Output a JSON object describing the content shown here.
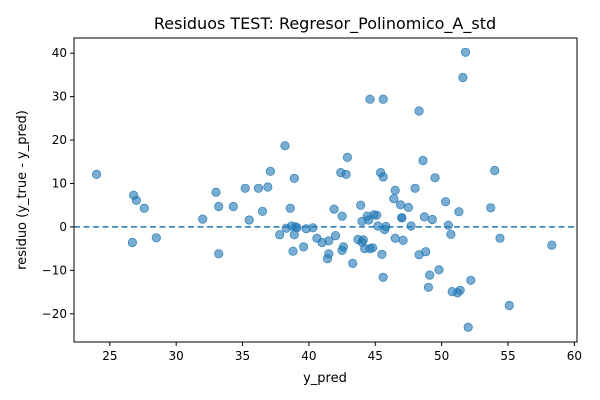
{
  "chart_data": {
    "type": "scatter",
    "title": "Residuos TEST: Regresor_Polinomico_A_std",
    "xlabel": "y_pred",
    "ylabel": "residuo (y_true - y_pred)",
    "xlim": [
      22.3,
      60.2
    ],
    "ylim": [
      -26.5,
      43.5
    ],
    "xticks": [
      25,
      30,
      35,
      40,
      45,
      50,
      55,
      60
    ],
    "yticks": [
      -20,
      -10,
      0,
      10,
      20,
      30,
      40
    ],
    "reference_line": {
      "y": 0,
      "style": "dashed",
      "color": "#1f77b4"
    },
    "grid": false,
    "marker_color": "#1f77b4",
    "points": [
      {
        "x": 24.0,
        "y": 12.1
      },
      {
        "x": 26.7,
        "y": -3.6
      },
      {
        "x": 26.8,
        "y": 7.3
      },
      {
        "x": 27.0,
        "y": 6.1
      },
      {
        "x": 27.6,
        "y": 4.3
      },
      {
        "x": 28.5,
        "y": -2.5
      },
      {
        "x": 32.0,
        "y": 1.8
      },
      {
        "x": 33.0,
        "y": 8.0
      },
      {
        "x": 33.2,
        "y": 4.7
      },
      {
        "x": 33.2,
        "y": -6.2
      },
      {
        "x": 34.3,
        "y": 4.7
      },
      {
        "x": 35.2,
        "y": 8.9
      },
      {
        "x": 35.5,
        "y": 1.6
      },
      {
        "x": 36.2,
        "y": 8.9
      },
      {
        "x": 36.5,
        "y": 3.6
      },
      {
        "x": 36.9,
        "y": 9.2
      },
      {
        "x": 37.1,
        "y": 12.8
      },
      {
        "x": 37.8,
        "y": -1.8
      },
      {
        "x": 38.2,
        "y": 18.7
      },
      {
        "x": 38.3,
        "y": -0.3
      },
      {
        "x": 38.6,
        "y": 4.3
      },
      {
        "x": 38.7,
        "y": 0.2
      },
      {
        "x": 38.8,
        "y": -5.6
      },
      {
        "x": 38.9,
        "y": -1.8
      },
      {
        "x": 38.9,
        "y": 11.2
      },
      {
        "x": 39.0,
        "y": 0.0
      },
      {
        "x": 39.1,
        "y": -0.2
      },
      {
        "x": 39.6,
        "y": -4.6
      },
      {
        "x": 39.8,
        "y": -0.4
      },
      {
        "x": 40.3,
        "y": -0.2
      },
      {
        "x": 40.6,
        "y": -2.6
      },
      {
        "x": 41.0,
        "y": -3.6
      },
      {
        "x": 41.4,
        "y": -7.3
      },
      {
        "x": 41.5,
        "y": -6.2
      },
      {
        "x": 41.5,
        "y": -3.2
      },
      {
        "x": 41.9,
        "y": 4.1
      },
      {
        "x": 42.0,
        "y": -2.0
      },
      {
        "x": 42.4,
        "y": 12.5
      },
      {
        "x": 42.5,
        "y": -5.4
      },
      {
        "x": 42.5,
        "y": 2.5
      },
      {
        "x": 42.6,
        "y": -4.6
      },
      {
        "x": 42.8,
        "y": 12.1
      },
      {
        "x": 42.9,
        "y": 16.0
      },
      {
        "x": 43.3,
        "y": -8.4
      },
      {
        "x": 43.7,
        "y": -2.9
      },
      {
        "x": 43.9,
        "y": 5.0
      },
      {
        "x": 44.0,
        "y": 1.3
      },
      {
        "x": 44.0,
        "y": -3.5
      },
      {
        "x": 44.1,
        "y": -3.0
      },
      {
        "x": 44.2,
        "y": -5.0
      },
      {
        "x": 44.4,
        "y": 2.5
      },
      {
        "x": 44.5,
        "y": 1.6
      },
      {
        "x": 44.6,
        "y": 29.4
      },
      {
        "x": 44.6,
        "y": -5.0
      },
      {
        "x": 44.8,
        "y": -4.8
      },
      {
        "x": 44.9,
        "y": 2.8
      },
      {
        "x": 45.1,
        "y": 2.7
      },
      {
        "x": 45.2,
        "y": 0.2
      },
      {
        "x": 45.4,
        "y": 12.5
      },
      {
        "x": 45.5,
        "y": -6.3
      },
      {
        "x": 45.6,
        "y": 11.5
      },
      {
        "x": 45.6,
        "y": 29.4
      },
      {
        "x": 45.6,
        "y": -11.6
      },
      {
        "x": 45.7,
        "y": -0.6
      },
      {
        "x": 45.8,
        "y": 0.1
      },
      {
        "x": 46.4,
        "y": 6.5
      },
      {
        "x": 46.5,
        "y": 8.4
      },
      {
        "x": 46.5,
        "y": -2.6
      },
      {
        "x": 46.9,
        "y": 5.1
      },
      {
        "x": 47.0,
        "y": 2.1
      },
      {
        "x": 47.0,
        "y": 2.1
      },
      {
        "x": 47.1,
        "y": -3.1
      },
      {
        "x": 47.5,
        "y": 4.5
      },
      {
        "x": 47.7,
        "y": 0.2
      },
      {
        "x": 48.0,
        "y": 8.9
      },
      {
        "x": 48.3,
        "y": 26.7
      },
      {
        "x": 48.3,
        "y": -6.4
      },
      {
        "x": 48.6,
        "y": 15.3
      },
      {
        "x": 48.7,
        "y": 2.3
      },
      {
        "x": 48.8,
        "y": -5.7
      },
      {
        "x": 49.0,
        "y": -13.9
      },
      {
        "x": 49.1,
        "y": -11.1
      },
      {
        "x": 49.3,
        "y": 1.7
      },
      {
        "x": 49.5,
        "y": 11.3
      },
      {
        "x": 49.8,
        "y": -9.9
      },
      {
        "x": 50.3,
        "y": 5.8
      },
      {
        "x": 50.5,
        "y": 0.4
      },
      {
        "x": 50.7,
        "y": -1.7
      },
      {
        "x": 50.8,
        "y": -14.9
      },
      {
        "x": 51.2,
        "y": -15.2
      },
      {
        "x": 51.3,
        "y": 3.5
      },
      {
        "x": 51.4,
        "y": -14.6
      },
      {
        "x": 51.6,
        "y": 34.4
      },
      {
        "x": 51.8,
        "y": 40.2
      },
      {
        "x": 52.0,
        "y": -23.1
      },
      {
        "x": 52.2,
        "y": -12.3
      },
      {
        "x": 53.7,
        "y": 4.4
      },
      {
        "x": 54.0,
        "y": 13.0
      },
      {
        "x": 54.4,
        "y": -2.6
      },
      {
        "x": 55.1,
        "y": -18.1
      },
      {
        "x": 58.3,
        "y": -4.2
      }
    ]
  }
}
